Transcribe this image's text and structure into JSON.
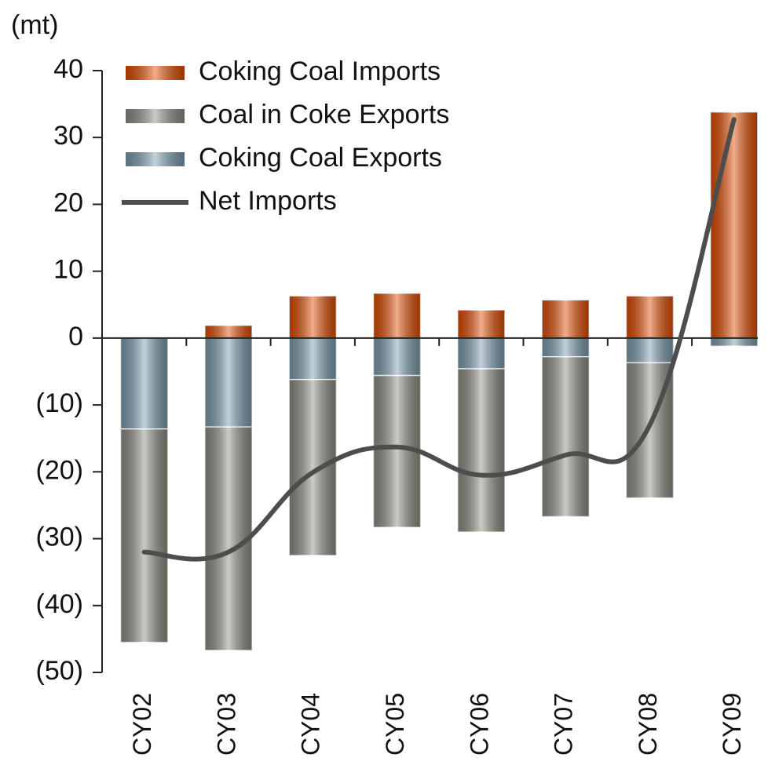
{
  "chart_data": {
    "type": "bar_line",
    "y_label": "(mt)",
    "categories": [
      "CY02",
      "CY03",
      "CY04",
      "CY05",
      "CY06",
      "CY07",
      "CY08",
      "CY09"
    ],
    "series": [
      {
        "name": "Coking Coal Imports",
        "color": "#e04a00",
        "type": "bar",
        "values": [
          0,
          1.9,
          6.3,
          6.7,
          4.2,
          5.7,
          6.3,
          33.8
        ]
      },
      {
        "name": "Coal in Coke Exports",
        "color": "#8c8c82",
        "type": "bar",
        "values": [
          -31.9,
          -33.4,
          -26.3,
          -22.7,
          -24.4,
          -23.9,
          -20.2,
          0
        ]
      },
      {
        "name": "Coking Coal Exports",
        "color": "#7a9bad",
        "type": "bar",
        "values": [
          -13.6,
          -13.3,
          -6.2,
          -5.6,
          -4.6,
          -2.8,
          -3.7,
          -1.2
        ]
      },
      {
        "name": "Net Imports",
        "color": "#4d4d4d",
        "type": "line",
        "values": [
          -32,
          -32,
          -20.1,
          -16.3,
          -20.5,
          -17.5,
          -13,
          32.7
        ]
      }
    ],
    "ylim": [
      -50,
      40
    ],
    "yticks": [
      {
        "value": -50,
        "label": "(50)"
      },
      {
        "value": -40,
        "label": "(40)"
      },
      {
        "value": -30,
        "label": "(30)"
      },
      {
        "value": -20,
        "label": "(20)"
      },
      {
        "value": -10,
        "label": "(10)"
      },
      0,
      10,
      20,
      30,
      40
    ],
    "legend": "top-left"
  }
}
